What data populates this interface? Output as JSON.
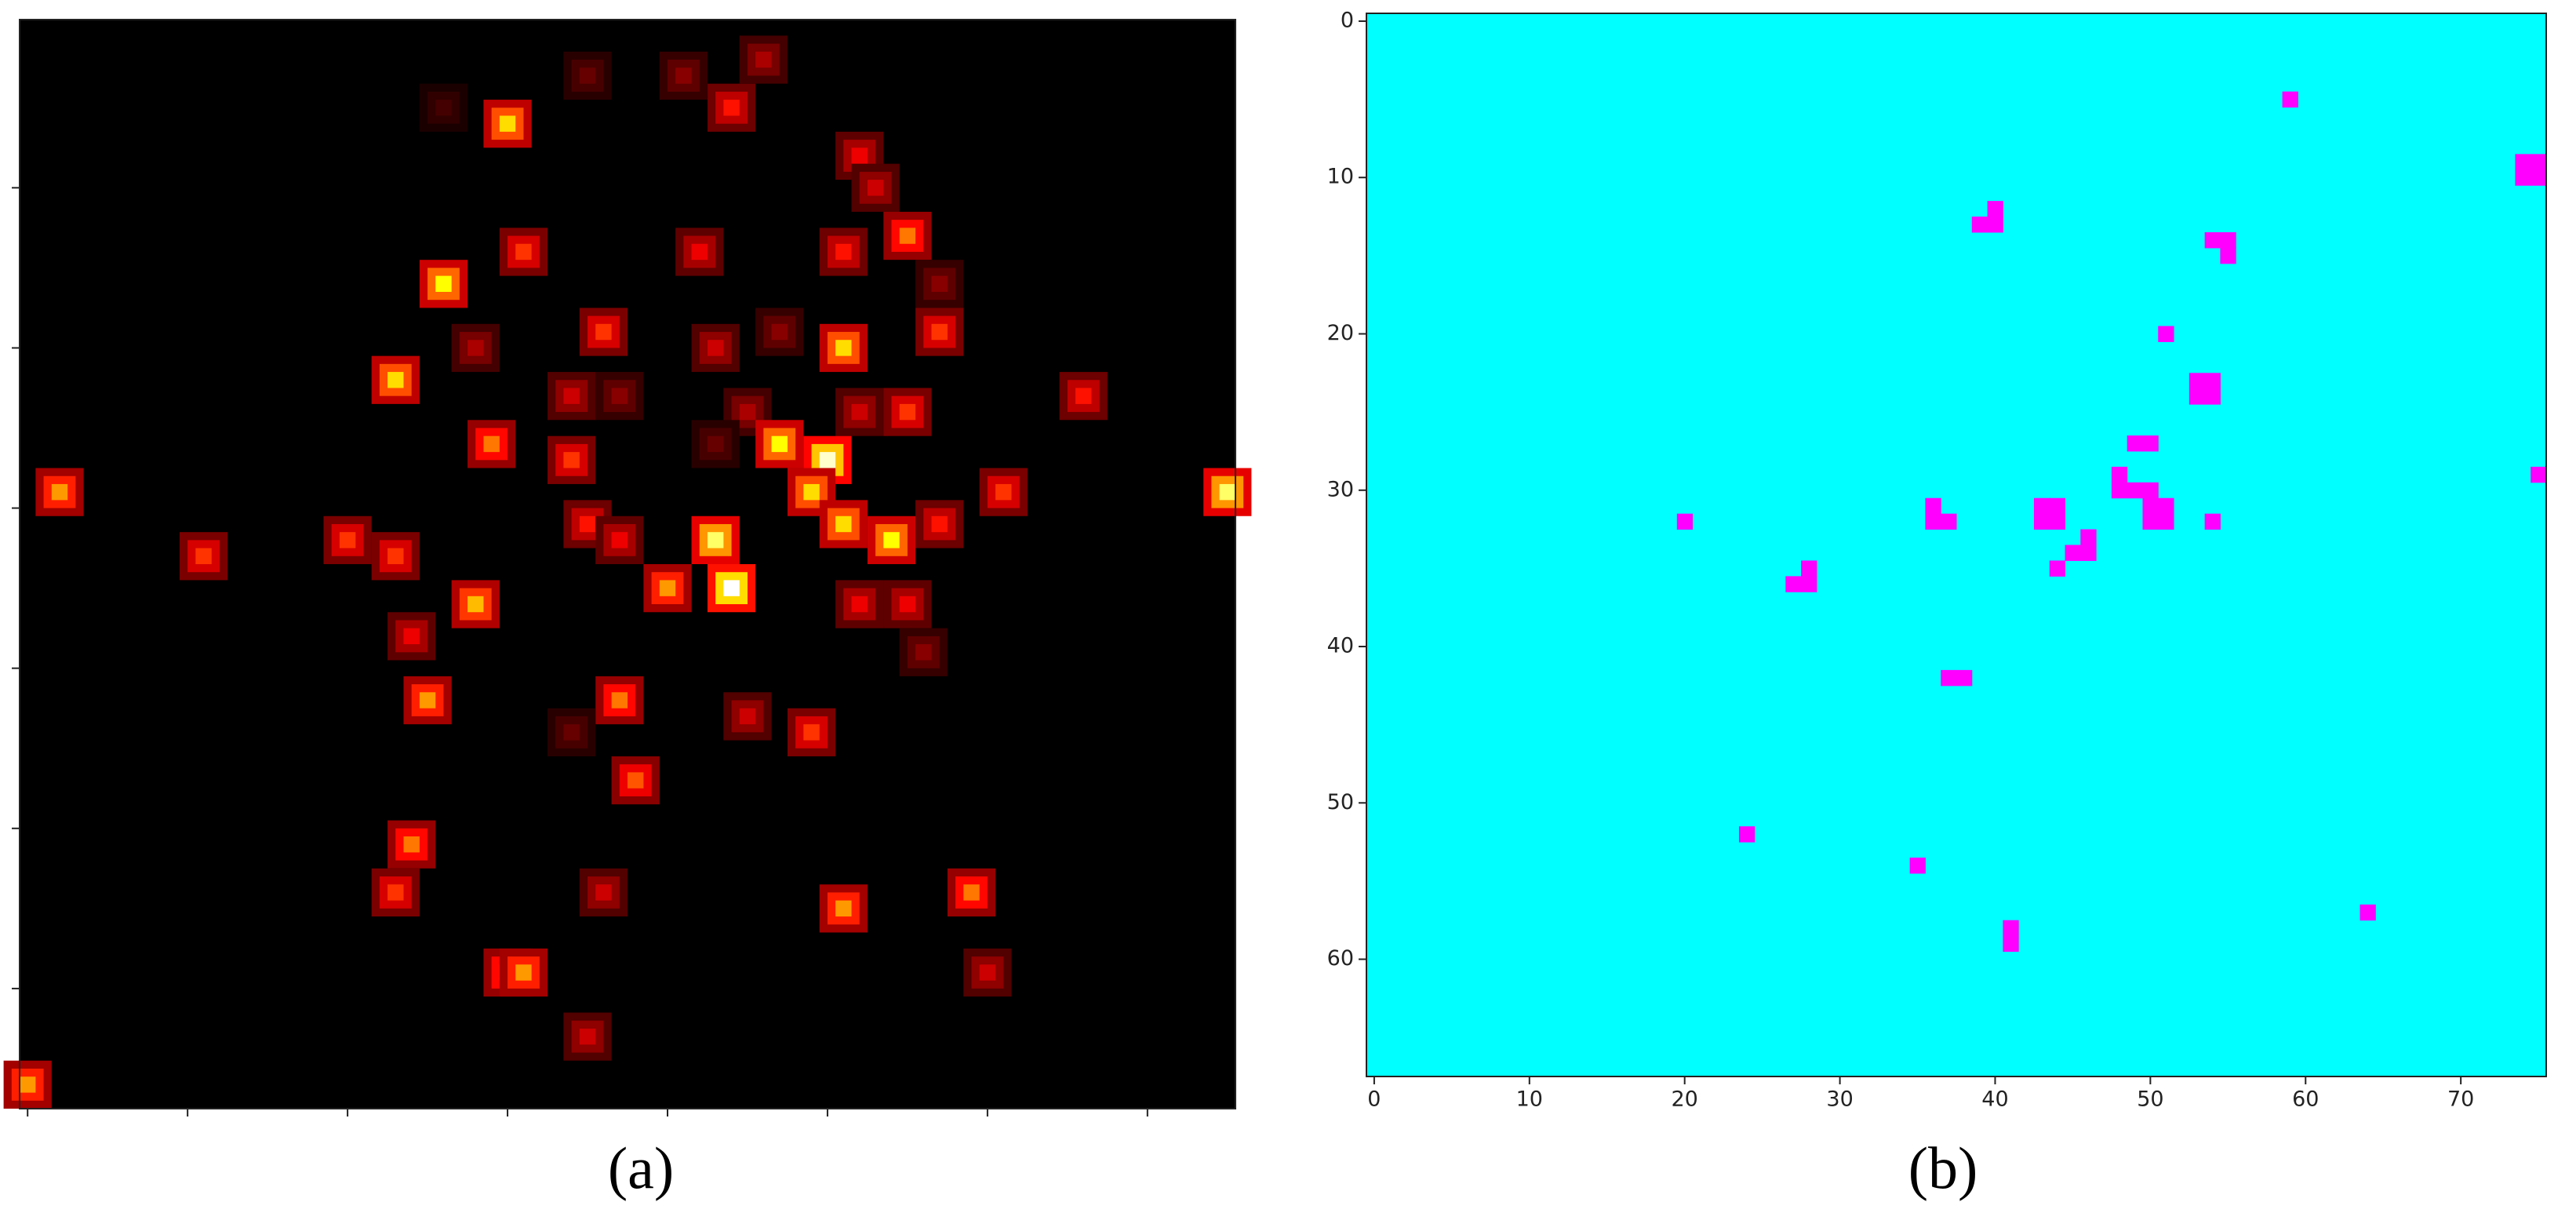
{
  "chart_data": [
    {
      "type": "heatmap",
      "caption": "(a)",
      "colormap": "hot",
      "vlim": [
        0,
        1
      ],
      "background": "#000000",
      "xlim": [
        -0.5,
        75.5
      ],
      "ylim": [
        67.5,
        -0.5
      ],
      "xticks": [
        0,
        10,
        20,
        30,
        40,
        50,
        60,
        70
      ],
      "yticks": [
        10,
        20,
        30,
        40,
        50,
        60
      ],
      "tick_labels": false,
      "cells": [
        [
          30,
          6,
          0.7
        ],
        [
          44,
          5,
          0.4
        ],
        [
          41,
          3,
          0.2
        ],
        [
          46,
          2,
          0.25
        ],
        [
          35,
          3,
          0.15
        ],
        [
          26,
          5,
          0.1
        ],
        [
          52,
          8,
          0.35
        ],
        [
          53,
          10,
          0.3
        ],
        [
          55,
          13,
          0.55
        ],
        [
          31,
          14,
          0.45
        ],
        [
          42,
          14,
          0.35
        ],
        [
          51,
          14,
          0.4
        ],
        [
          26,
          16,
          0.75
        ],
        [
          57,
          16,
          0.2
        ],
        [
          28,
          20,
          0.25
        ],
        [
          36,
          19,
          0.45
        ],
        [
          43,
          20,
          0.3
        ],
        [
          47,
          19,
          0.2
        ],
        [
          51,
          20,
          0.7
        ],
        [
          57,
          19,
          0.45
        ],
        [
          23,
          22,
          0.7
        ],
        [
          66,
          23,
          0.4
        ],
        [
          34,
          23,
          0.3
        ],
        [
          37,
          23,
          0.2
        ],
        [
          45,
          24,
          0.25
        ],
        [
          52,
          24,
          0.3
        ],
        [
          55,
          24,
          0.45
        ],
        [
          29,
          26,
          0.55
        ],
        [
          34,
          27,
          0.45
        ],
        [
          43,
          26,
          0.15
        ],
        [
          47,
          26,
          0.75
        ],
        [
          50,
          27,
          0.95
        ],
        [
          49,
          29,
          0.7
        ],
        [
          51,
          31,
          0.7
        ],
        [
          54,
          32,
          0.75
        ],
        [
          2,
          29,
          0.6
        ],
        [
          61,
          29,
          0.45
        ],
        [
          75,
          29,
          0.85
        ],
        [
          20,
          32,
          0.45
        ],
        [
          23,
          33,
          0.45
        ],
        [
          11,
          33,
          0.45
        ],
        [
          35,
          31,
          0.4
        ],
        [
          37,
          32,
          0.35
        ],
        [
          43,
          32,
          0.85
        ],
        [
          57,
          31,
          0.4
        ],
        [
          28,
          36,
          0.65
        ],
        [
          40,
          35,
          0.6
        ],
        [
          44,
          35,
          1.0
        ],
        [
          52,
          36,
          0.35
        ],
        [
          55,
          36,
          0.35
        ],
        [
          24,
          38,
          0.35
        ],
        [
          56,
          39,
          0.2
        ],
        [
          25,
          42,
          0.6
        ],
        [
          37,
          42,
          0.55
        ],
        [
          45,
          43,
          0.3
        ],
        [
          49,
          44,
          0.45
        ],
        [
          34,
          44,
          0.15
        ],
        [
          38,
          47,
          0.5
        ],
        [
          24,
          51,
          0.55
        ],
        [
          23,
          54,
          0.45
        ],
        [
          36,
          54,
          0.3
        ],
        [
          59,
          54,
          0.55
        ],
        [
          51,
          55,
          0.6
        ],
        [
          60,
          59,
          0.3
        ],
        [
          30,
          59,
          0.55
        ],
        [
          31,
          59,
          0.6
        ],
        [
          35,
          63,
          0.3
        ],
        [
          0,
          66,
          0.6
        ]
      ]
    },
    {
      "type": "mask",
      "caption": "(b)",
      "background": "#00ffff",
      "color": "#ff00ff",
      "xlim": [
        -0.5,
        75.5
      ],
      "ylim": [
        67.5,
        -0.5
      ],
      "xticks": [
        0,
        10,
        20,
        30,
        40,
        50,
        60,
        70
      ],
      "yticks": [
        0,
        10,
        20,
        30,
        40,
        50,
        60
      ],
      "tick_labels": true,
      "cells": [
        [
          59,
          5
        ],
        [
          74,
          9
        ],
        [
          75,
          9
        ],
        [
          74,
          10
        ],
        [
          75,
          10
        ],
        [
          40,
          12
        ],
        [
          39,
          13
        ],
        [
          40,
          13
        ],
        [
          54,
          14
        ],
        [
          55,
          14
        ],
        [
          55,
          15
        ],
        [
          51,
          20
        ],
        [
          53,
          23
        ],
        [
          54,
          23
        ],
        [
          53,
          24
        ],
        [
          54,
          24
        ],
        [
          49,
          27
        ],
        [
          50,
          27
        ],
        [
          48,
          29
        ],
        [
          48,
          30
        ],
        [
          49,
          30
        ],
        [
          50,
          30
        ],
        [
          50,
          31
        ],
        [
          51,
          31
        ],
        [
          50,
          32
        ],
        [
          51,
          32
        ],
        [
          75,
          29
        ],
        [
          20,
          32
        ],
        [
          36,
          31
        ],
        [
          36,
          32
        ],
        [
          37,
          32
        ],
        [
          43,
          31
        ],
        [
          44,
          31
        ],
        [
          43,
          32
        ],
        [
          44,
          32
        ],
        [
          54,
          32
        ],
        [
          46,
          33
        ],
        [
          45,
          34
        ],
        [
          46,
          34
        ],
        [
          44,
          35
        ],
        [
          28,
          35
        ],
        [
          27,
          36
        ],
        [
          28,
          36
        ],
        [
          37,
          42
        ],
        [
          38,
          42
        ],
        [
          24,
          52
        ],
        [
          35,
          54
        ],
        [
          41,
          58
        ],
        [
          41,
          59
        ],
        [
          64,
          57
        ]
      ]
    }
  ]
}
